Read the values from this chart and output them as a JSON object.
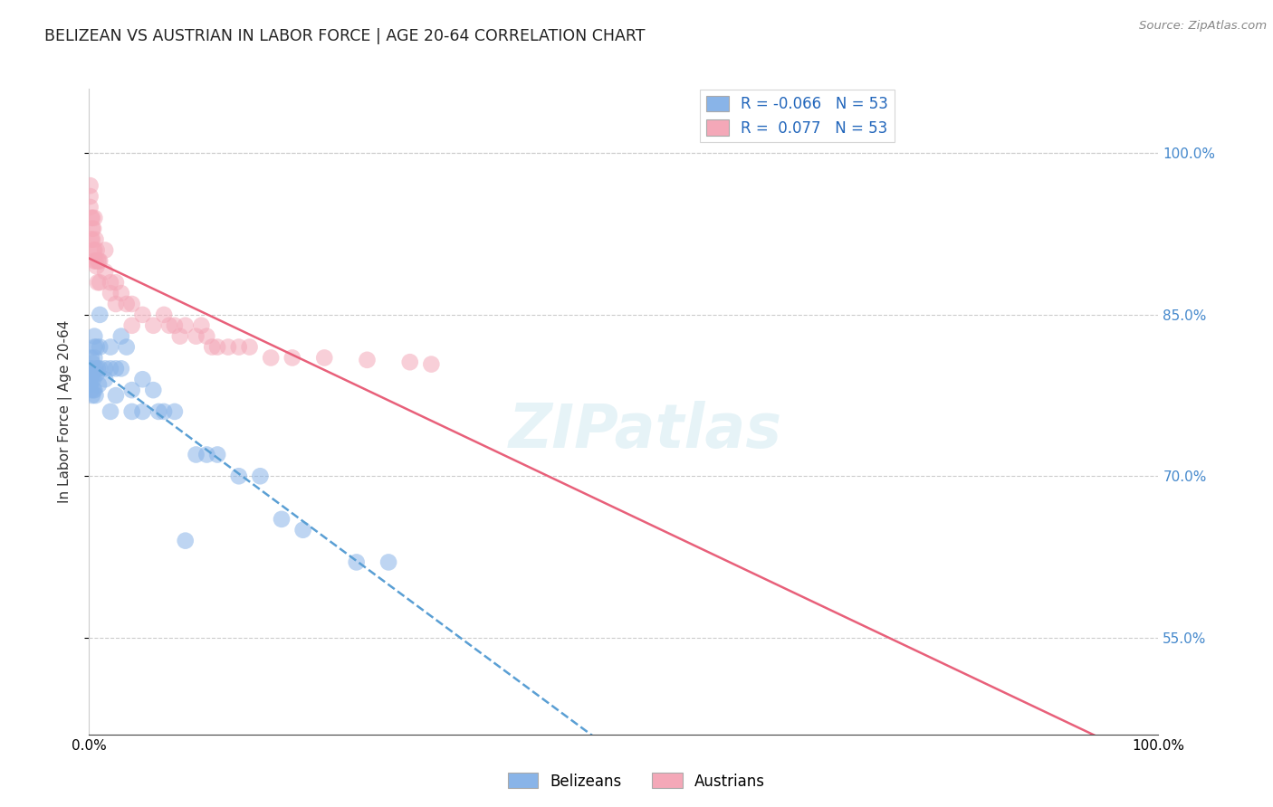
{
  "title": "BELIZEAN VS AUSTRIAN IN LABOR FORCE | AGE 20-64 CORRELATION CHART",
  "source": "Source: ZipAtlas.com",
  "ylabel": "In Labor Force | Age 20-64",
  "xlim": [
    0.0,
    1.0
  ],
  "ylim": [
    0.46,
    1.06
  ],
  "ytick_values": [
    0.55,
    0.7,
    0.85,
    1.0
  ],
  "ytick_labels": [
    "55.0%",
    "70.0%",
    "85.0%",
    "100.0%"
  ],
  "legend_r_belizean": "-0.066",
  "legend_r_austrian": " 0.077",
  "legend_n": "53",
  "belizean_color": "#89b4e8",
  "austrian_color": "#f4a8b8",
  "belizean_line_color": "#5a9fd4",
  "austrian_line_color": "#e8607a",
  "watermark": "ZIPatlas",
  "belizean_x": [
    0.001,
    0.001,
    0.001,
    0.002,
    0.002,
    0.002,
    0.002,
    0.003,
    0.003,
    0.003,
    0.004,
    0.004,
    0.005,
    0.005,
    0.005,
    0.005,
    0.006,
    0.006,
    0.007,
    0.007,
    0.008,
    0.009,
    0.01,
    0.01,
    0.01,
    0.015,
    0.015,
    0.02,
    0.02,
    0.02,
    0.025,
    0.025,
    0.03,
    0.03,
    0.035,
    0.04,
    0.04,
    0.05,
    0.05,
    0.06,
    0.065,
    0.07,
    0.08,
    0.09,
    0.1,
    0.11,
    0.12,
    0.14,
    0.16,
    0.18,
    0.2,
    0.25,
    0.28
  ],
  "belizean_y": [
    0.8,
    0.795,
    0.785,
    0.81,
    0.8,
    0.79,
    0.78,
    0.805,
    0.795,
    0.775,
    0.79,
    0.78,
    0.83,
    0.82,
    0.81,
    0.78,
    0.8,
    0.775,
    0.82,
    0.795,
    0.8,
    0.785,
    0.85,
    0.82,
    0.8,
    0.8,
    0.79,
    0.82,
    0.8,
    0.76,
    0.8,
    0.775,
    0.83,
    0.8,
    0.82,
    0.78,
    0.76,
    0.79,
    0.76,
    0.78,
    0.76,
    0.76,
    0.76,
    0.64,
    0.72,
    0.72,
    0.72,
    0.7,
    0.7,
    0.66,
    0.65,
    0.62,
    0.62
  ],
  "austrian_x": [
    0.001,
    0.001,
    0.001,
    0.002,
    0.002,
    0.003,
    0.003,
    0.003,
    0.004,
    0.004,
    0.005,
    0.005,
    0.005,
    0.006,
    0.006,
    0.007,
    0.007,
    0.008,
    0.008,
    0.009,
    0.01,
    0.01,
    0.015,
    0.015,
    0.02,
    0.02,
    0.025,
    0.025,
    0.03,
    0.035,
    0.04,
    0.04,
    0.05,
    0.06,
    0.07,
    0.075,
    0.08,
    0.085,
    0.09,
    0.1,
    0.105,
    0.11,
    0.115,
    0.12,
    0.13,
    0.14,
    0.15,
    0.17,
    0.19,
    0.22,
    0.26,
    0.3,
    0.32
  ],
  "austrian_y": [
    0.97,
    0.96,
    0.95,
    0.94,
    0.92,
    0.94,
    0.93,
    0.92,
    0.93,
    0.91,
    0.94,
    0.91,
    0.9,
    0.92,
    0.9,
    0.91,
    0.895,
    0.9,
    0.88,
    0.9,
    0.9,
    0.88,
    0.91,
    0.89,
    0.88,
    0.87,
    0.88,
    0.86,
    0.87,
    0.86,
    0.86,
    0.84,
    0.85,
    0.84,
    0.85,
    0.84,
    0.84,
    0.83,
    0.84,
    0.83,
    0.84,
    0.83,
    0.82,
    0.82,
    0.82,
    0.82,
    0.82,
    0.81,
    0.81,
    0.81,
    0.808,
    0.806,
    0.804
  ]
}
